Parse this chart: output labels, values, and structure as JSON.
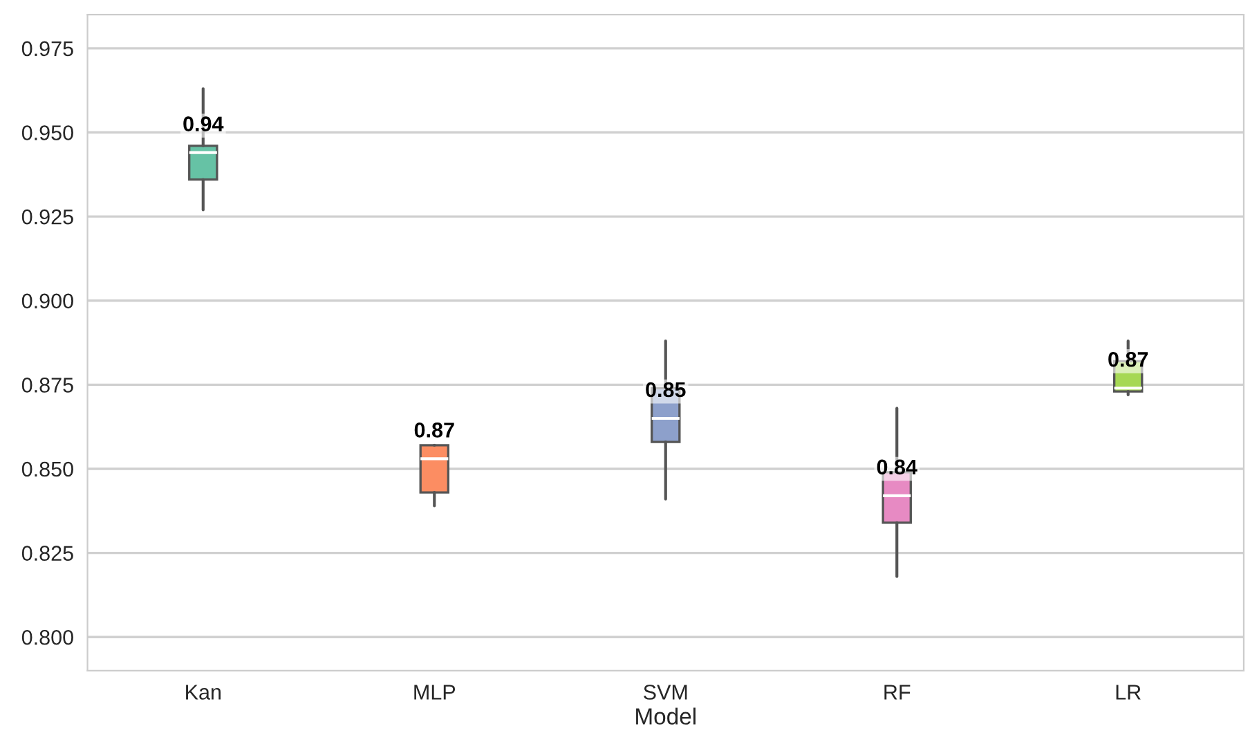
{
  "chart_data": {
    "type": "box",
    "xlabel": "Model",
    "categories": [
      "Kan",
      "MLP",
      "SVM",
      "RF",
      "LR"
    ],
    "boxes": [
      {
        "low": 0.927,
        "q1": 0.936,
        "median": 0.944,
        "q3": 0.946,
        "high": 0.963
      },
      {
        "low": 0.839,
        "q1": 0.843,
        "median": 0.853,
        "q3": 0.857,
        "high": 0.857
      },
      {
        "low": 0.841,
        "q1": 0.858,
        "median": 0.865,
        "q3": 0.874,
        "high": 0.888
      },
      {
        "low": 0.818,
        "q1": 0.834,
        "median": 0.842,
        "q3": 0.849,
        "high": 0.868
      },
      {
        "low": 0.872,
        "q1": 0.873,
        "median": 0.874,
        "q3": 0.882,
        "high": 0.888
      }
    ],
    "colors": [
      "#66c2a5",
      "#fc8d62",
      "#8da0cb",
      "#e78ac3",
      "#a6d854"
    ],
    "annotations": [
      "0.94",
      "0.87",
      "0.85",
      "0.84",
      "0.87"
    ],
    "ylim": [
      0.79,
      0.985
    ],
    "yticks": [
      {
        "value": 0.8,
        "label": "0.800"
      },
      {
        "value": 0.825,
        "label": "0.825"
      },
      {
        "value": 0.85,
        "label": "0.850"
      },
      {
        "value": 0.875,
        "label": "0.875"
      },
      {
        "value": 0.9,
        "label": "0.900"
      },
      {
        "value": 0.925,
        "label": "0.925"
      },
      {
        "value": 0.95,
        "label": "0.950"
      },
      {
        "value": 0.975,
        "label": "0.975"
      }
    ],
    "grid": "y"
  }
}
